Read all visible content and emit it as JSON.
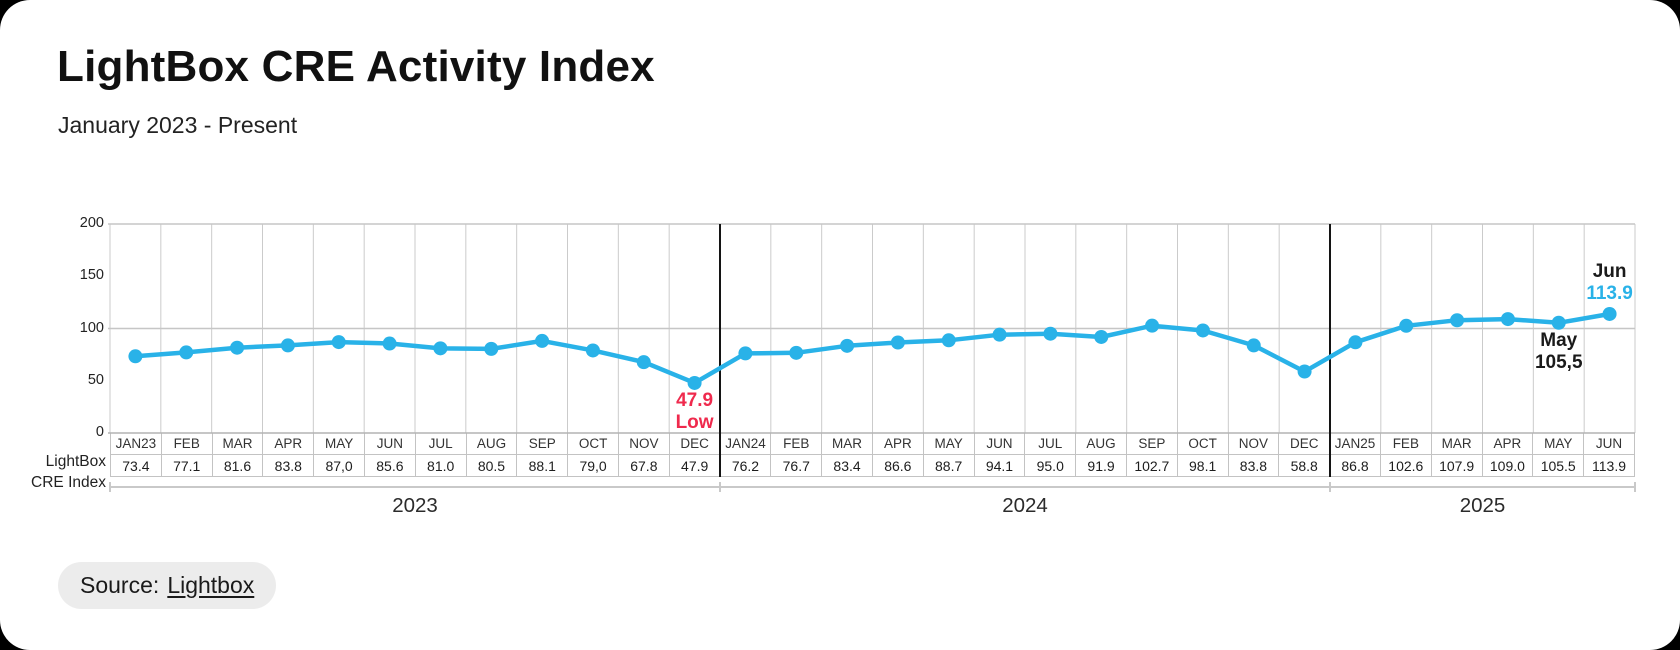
{
  "header": {
    "title": "LightBox CRE Activity Index",
    "subtitle": "January 2023 - Present"
  },
  "table": {
    "row_label_line1": "LightBox",
    "row_label_line2": "CRE Index"
  },
  "source": {
    "prefix": "Source:",
    "link": "Lightbox"
  },
  "colors": {
    "accent_cyan": "#29b2e8",
    "low_red": "#ef2a4d",
    "grid_gray": "#cbcbcb",
    "separator_black": "#141414",
    "text_dark": "#1a1a1a"
  },
  "chart_data": {
    "type": "line",
    "title": "LightBox CRE Activity Index",
    "series_name": "LightBox CRE Index",
    "color": "#29b2e8",
    "categories": [
      "JAN23",
      "FEB",
      "MAR",
      "APR",
      "MAY",
      "JUN",
      "JUL",
      "AUG",
      "SEP",
      "OCT",
      "NOV",
      "DEC",
      "JAN24",
      "FEB",
      "MAR",
      "APR",
      "MAY",
      "JUN",
      "JUL",
      "AUG",
      "SEP",
      "OCT",
      "NOV",
      "DEC",
      "JAN25",
      "FEB",
      "MAR",
      "APR",
      "MAY",
      "JUN"
    ],
    "values": [
      73.4,
      77.1,
      81.6,
      83.8,
      87.0,
      85.6,
      81.0,
      80.5,
      88.1,
      79.0,
      67.8,
      47.9,
      76.2,
      76.7,
      83.4,
      86.6,
      88.7,
      94.1,
      95.0,
      91.9,
      102.7,
      98.1,
      83.8,
      58.8,
      86.8,
      102.6,
      107.9,
      109.0,
      105.5,
      113.9
    ],
    "display_values": [
      "73.4",
      "77.1",
      "81.6",
      "83.8",
      "87,0",
      "85.6",
      "81.0",
      "80.5",
      "88.1",
      "79,0",
      "67.8",
      "47.9",
      "76.2",
      "76.7",
      "83.4",
      "86.6",
      "88.7",
      "94.1",
      "95.0",
      "91.9",
      "102.7",
      "98.1",
      "83.8",
      "58.8",
      "86.8",
      "102.6",
      "107.9",
      "109.0",
      "105.5",
      "113.9"
    ],
    "ylim": [
      0,
      200
    ],
    "yticks": [
      0,
      50,
      100,
      150,
      200
    ],
    "gridline_levels": [
      100,
      200
    ],
    "grid": true,
    "legend": "none",
    "years": [
      {
        "label": "2023",
        "start": 0,
        "end": 11
      },
      {
        "label": "2024",
        "start": 12,
        "end": 23
      },
      {
        "label": "2025",
        "start": 24,
        "end": 29
      }
    ],
    "annotations": [
      {
        "id": "dec23-low",
        "lines": [
          "47.9",
          "Low"
        ],
        "line_colors": [
          "#ef2a4d",
          "#ef2a4d"
        ],
        "month_index": 11,
        "position": "below"
      },
      {
        "id": "may25",
        "lines": [
          "May",
          "105,5"
        ],
        "line_colors": [
          "#1a1a1a",
          "#1a1a1a"
        ],
        "month_index": 28,
        "position": "below"
      },
      {
        "id": "jun25",
        "lines": [
          "Jun",
          "113.9"
        ],
        "line_colors": [
          "#1a1a1a",
          "#29b2e8"
        ],
        "month_index": 29,
        "position": "above"
      }
    ]
  }
}
